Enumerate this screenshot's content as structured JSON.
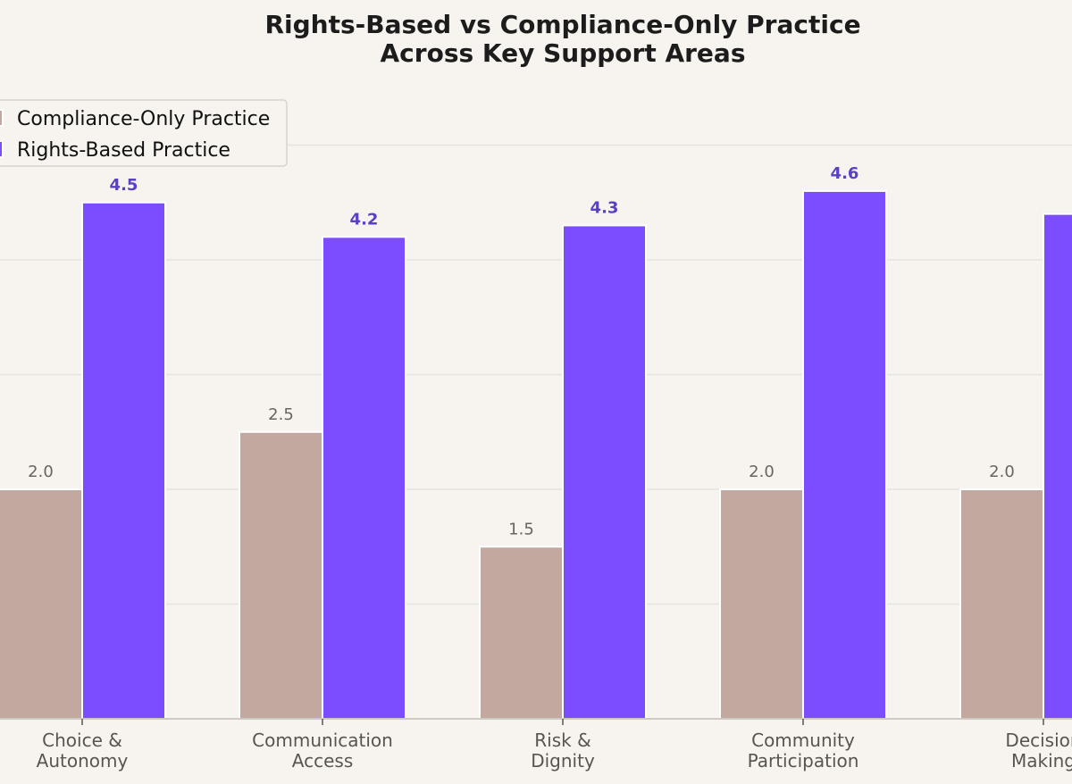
{
  "chart_data": {
    "type": "bar",
    "title": "Rights-Based vs Compliance-Only Practice\nAcross Key Support Areas",
    "xlabel": "",
    "ylabel": "",
    "categories": [
      "Choice &\nAutonomy",
      "Communication\nAccess",
      "Risk &\nDignity",
      "Community\nParticipation",
      "Decision\nMaking"
    ],
    "series": [
      {
        "name": "Compliance-Only Practice",
        "values": [
          2.0,
          2.5,
          1.5,
          2.0,
          2.0
        ],
        "color": "#c2a89e"
      },
      {
        "name": "Rights-Based Practice",
        "values": [
          4.5,
          4.2,
          4.3,
          4.6,
          4.4
        ],
        "color": "#7b4dff"
      }
    ],
    "value_labels": [
      [
        "2.0",
        "2.5",
        "1.5",
        "2.0",
        "2.0"
      ],
      [
        "4.5",
        "4.2",
        "4.3",
        "4.6",
        ""
      ]
    ],
    "ylim": [
      0,
      5
    ],
    "grid": true,
    "legend": "top-left"
  }
}
